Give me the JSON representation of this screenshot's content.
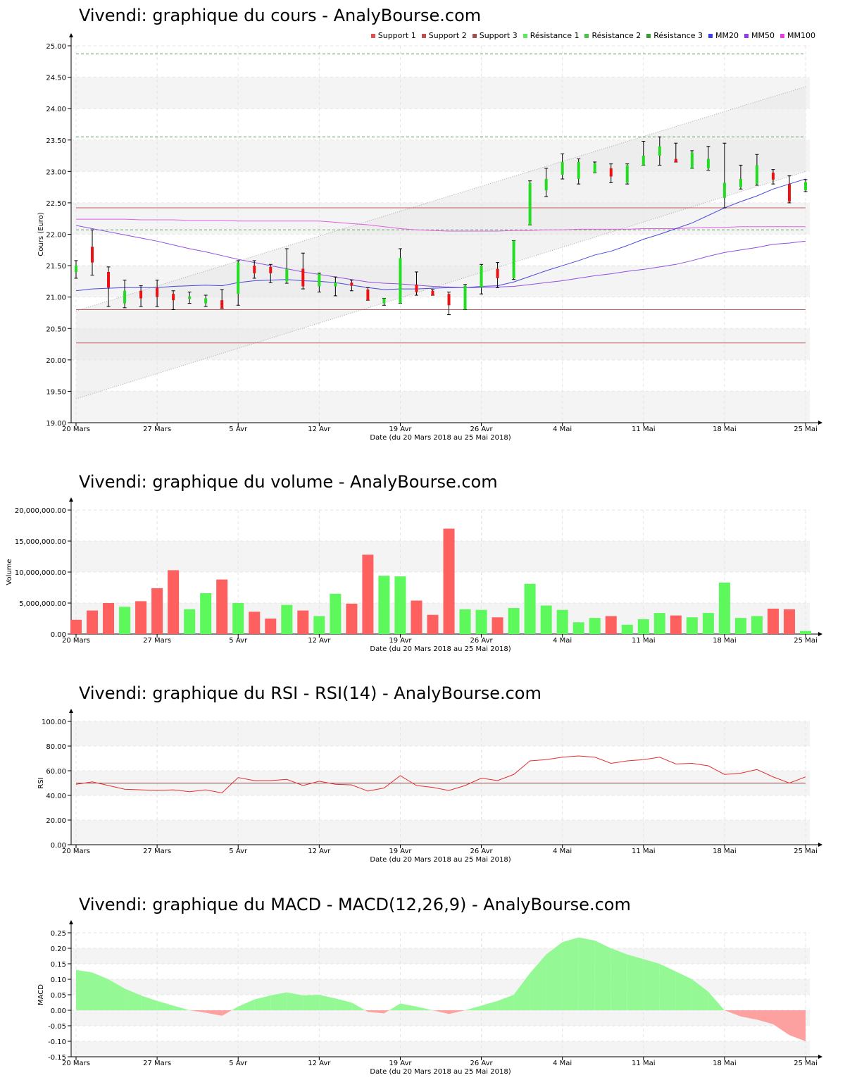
{
  "chart_data": [
    {
      "type": "candlestick",
      "title": "Vivendi: graphique du cours - AnalyBourse.com",
      "ylabel": "Cours (Euro)",
      "xlabel": "Date (du 20 Mars 2018 au 25 Mai 2018)",
      "ylim": [
        19.0,
        25.0
      ],
      "yticks": [
        "19.00",
        "19.50",
        "20.00",
        "20.50",
        "21.00",
        "21.50",
        "22.00",
        "22.50",
        "23.00",
        "23.50",
        "24.00",
        "24.50",
        "25.00"
      ],
      "xticks": [
        "20 Mars",
        "27 Mars",
        "5 Avr",
        "12 Avr",
        "19 Avr",
        "26 Avr",
        "4 Mai",
        "11 Mai",
        "18 Mai",
        "25 Mai"
      ],
      "xtick_index": [
        0,
        5,
        10,
        15,
        20,
        25,
        30,
        35,
        40,
        45
      ],
      "legend": [
        {
          "name": "Support 1",
          "color": "#e05050"
        },
        {
          "name": "Support 2",
          "color": "#c05050"
        },
        {
          "name": "Support 3",
          "color": "#a05050"
        },
        {
          "name": "Résistance 1",
          "color": "#5ee85e"
        },
        {
          "name": "Résistance 2",
          "color": "#4cc04c"
        },
        {
          "name": "Résistance 3",
          "color": "#3a9a3a"
        },
        {
          "name": "MM20",
          "color": "#4040e0"
        },
        {
          "name": "MM50",
          "color": "#9040e0"
        },
        {
          "name": "MM100",
          "color": "#e040e0"
        }
      ],
      "levels": {
        "support1": 20.8,
        "support2": 22.42,
        "support3": 20.27,
        "resistance1": 22.07,
        "resistance2": 23.55,
        "resistance3": 24.87
      },
      "trend_channel": {
        "upper": [
          20.78,
          24.35
        ],
        "lower": [
          19.38,
          23.0
        ]
      },
      "candles": [
        {
          "o": 21.4,
          "h": 21.58,
          "l": 21.3,
          "c": 21.5
        },
        {
          "o": 21.8,
          "h": 22.07,
          "l": 21.35,
          "c": 21.55
        },
        {
          "o": 21.4,
          "h": 21.48,
          "l": 20.85,
          "c": 21.15
        },
        {
          "o": 20.9,
          "h": 21.27,
          "l": 20.83,
          "c": 21.1
        },
        {
          "o": 21.1,
          "h": 21.18,
          "l": 20.85,
          "c": 20.98
        },
        {
          "o": 21.15,
          "h": 21.27,
          "l": 20.85,
          "c": 21.0
        },
        {
          "o": 21.05,
          "h": 21.1,
          "l": 20.8,
          "c": 20.95
        },
        {
          "o": 20.97,
          "h": 21.08,
          "l": 20.9,
          "c": 21.01
        },
        {
          "o": 20.9,
          "h": 21.03,
          "l": 20.85,
          "c": 20.98
        },
        {
          "o": 20.95,
          "h": 21.12,
          "l": 20.82,
          "c": 20.82
        },
        {
          "o": 21.05,
          "h": 21.58,
          "l": 20.87,
          "c": 21.55
        },
        {
          "o": 21.5,
          "h": 21.58,
          "l": 21.3,
          "c": 21.38
        },
        {
          "o": 21.48,
          "h": 21.52,
          "l": 21.23,
          "c": 21.38
        },
        {
          "o": 21.25,
          "h": 21.77,
          "l": 21.22,
          "c": 21.45
        },
        {
          "o": 21.45,
          "h": 21.7,
          "l": 21.13,
          "c": 21.17
        },
        {
          "o": 21.17,
          "h": 21.38,
          "l": 21.08,
          "c": 21.37
        },
        {
          "o": 21.17,
          "h": 21.32,
          "l": 21.02,
          "c": 21.23
        },
        {
          "o": 21.23,
          "h": 21.27,
          "l": 21.1,
          "c": 21.18
        },
        {
          "o": 21.12,
          "h": 21.15,
          "l": 20.95,
          "c": 20.95
        },
        {
          "o": 20.9,
          "h": 20.98,
          "l": 20.87,
          "c": 20.98
        },
        {
          "o": 20.9,
          "h": 21.77,
          "l": 20.9,
          "c": 21.62
        },
        {
          "o": 21.2,
          "h": 21.4,
          "l": 21.03,
          "c": 21.08
        },
        {
          "o": 21.1,
          "h": 21.12,
          "l": 21.03,
          "c": 21.03
        },
        {
          "o": 21.05,
          "h": 21.08,
          "l": 20.72,
          "c": 20.87
        },
        {
          "o": 20.8,
          "h": 21.2,
          "l": 20.8,
          "c": 21.18
        },
        {
          "o": 21.15,
          "h": 21.52,
          "l": 21.05,
          "c": 21.5
        },
        {
          "o": 21.45,
          "h": 21.55,
          "l": 21.15,
          "c": 21.3
        },
        {
          "o": 21.3,
          "h": 21.9,
          "l": 21.28,
          "c": 21.9
        },
        {
          "o": 22.15,
          "h": 22.85,
          "l": 22.15,
          "c": 22.82
        },
        {
          "o": 22.7,
          "h": 23.05,
          "l": 22.6,
          "c": 22.88
        },
        {
          "o": 22.95,
          "h": 23.28,
          "l": 22.88,
          "c": 23.15
        },
        {
          "o": 22.88,
          "h": 23.2,
          "l": 22.8,
          "c": 23.15
        },
        {
          "o": 22.98,
          "h": 23.15,
          "l": 22.98,
          "c": 23.13
        },
        {
          "o": 23.05,
          "h": 23.12,
          "l": 22.82,
          "c": 22.92
        },
        {
          "o": 22.82,
          "h": 23.12,
          "l": 22.8,
          "c": 23.1
        },
        {
          "o": 23.1,
          "h": 23.48,
          "l": 23.1,
          "c": 23.25
        },
        {
          "o": 23.25,
          "h": 23.55,
          "l": 23.1,
          "c": 23.4
        },
        {
          "o": 23.2,
          "h": 23.45,
          "l": 23.15,
          "c": 23.15
        },
        {
          "o": 23.05,
          "h": 23.33,
          "l": 23.05,
          "c": 23.3
        },
        {
          "o": 23.05,
          "h": 23.4,
          "l": 23.02,
          "c": 23.2
        },
        {
          "o": 22.58,
          "h": 23.45,
          "l": 22.42,
          "c": 22.82
        },
        {
          "o": 22.75,
          "h": 23.1,
          "l": 22.72,
          "c": 22.88
        },
        {
          "o": 22.8,
          "h": 23.27,
          "l": 22.78,
          "c": 23.1
        },
        {
          "o": 22.98,
          "h": 23.03,
          "l": 22.8,
          "c": 22.87
        },
        {
          "o": 22.8,
          "h": 22.93,
          "l": 22.5,
          "c": 22.52
        },
        {
          "o": 22.7,
          "h": 22.87,
          "l": 22.68,
          "c": 22.83
        }
      ],
      "ma20": [
        21.1,
        21.13,
        21.14,
        21.15,
        21.15,
        21.15,
        21.17,
        21.18,
        21.19,
        21.18,
        21.23,
        21.26,
        21.27,
        21.28,
        21.26,
        21.25,
        21.23,
        21.19,
        21.15,
        21.12,
        21.13,
        21.13,
        21.14,
        21.15,
        21.15,
        21.17,
        21.18,
        21.24,
        21.33,
        21.42,
        21.5,
        21.58,
        21.67,
        21.73,
        21.82,
        21.92,
        22.0,
        22.09,
        22.18,
        22.3,
        22.42,
        22.52,
        22.61,
        22.72,
        22.8,
        22.88
      ],
      "ma50": [
        22.14,
        22.09,
        22.04,
        21.99,
        21.94,
        21.89,
        21.83,
        21.77,
        21.72,
        21.66,
        21.6,
        21.55,
        21.5,
        21.45,
        21.4,
        21.36,
        21.32,
        21.28,
        21.24,
        21.22,
        21.21,
        21.19,
        21.17,
        21.16,
        21.15,
        21.15,
        21.16,
        21.17,
        21.2,
        21.23,
        21.26,
        21.3,
        21.34,
        21.37,
        21.41,
        21.44,
        21.48,
        21.52,
        21.58,
        21.65,
        21.71,
        21.75,
        21.79,
        21.84,
        21.86,
        21.89
      ],
      "ma100": [
        22.24,
        22.24,
        22.24,
        22.24,
        22.23,
        22.23,
        22.23,
        22.22,
        22.22,
        22.22,
        22.21,
        22.21,
        22.21,
        22.21,
        22.21,
        22.21,
        22.19,
        22.17,
        22.15,
        22.12,
        22.09,
        22.07,
        22.06,
        22.05,
        22.05,
        22.05,
        22.05,
        22.06,
        22.06,
        22.07,
        22.07,
        22.08,
        22.08,
        22.08,
        22.08,
        22.09,
        22.09,
        22.09,
        22.1,
        22.11,
        22.11,
        22.12,
        22.12,
        22.12,
        22.12,
        22.12
      ]
    },
    {
      "type": "bar",
      "title": "Vivendi: graphique du volume - AnalyBourse.com",
      "ylabel": "Volume",
      "xlabel": "Date (du 20 Mars 2018 au 25 Mai 2018)",
      "ylim": [
        0,
        20000000
      ],
      "yticks": [
        "0.00",
        "5,000,000.00",
        "10,000,000.00",
        "15,000,000.00",
        "20,000,000.00"
      ],
      "xticks": [
        "20 Mars",
        "27 Mars",
        "5 Avr",
        "12 Avr",
        "19 Avr",
        "26 Avr",
        "4 Mai",
        "11 Mai",
        "18 Mai",
        "25 Mai"
      ],
      "up_color": "#5cf85c",
      "down_color": "#fe5f5f",
      "values": [
        2300000,
        3800000,
        5000000,
        4400000,
        5300000,
        7400000,
        10300000,
        4000000,
        6600000,
        8800000,
        5000000,
        3600000,
        2500000,
        4700000,
        3800000,
        2900000,
        6500000,
        4900000,
        12800000,
        9400000,
        9300000,
        5400000,
        3100000,
        17000000,
        4000000,
        3900000,
        2700000,
        4200000,
        8100000,
        4600000,
        3900000,
        1900000,
        2600000,
        2900000,
        1500000,
        2400000,
        3400000,
        3000000,
        2700000,
        3400000,
        8300000,
        2600000,
        2900000,
        4100000,
        4000000,
        500000
      ],
      "up": [
        false,
        false,
        false,
        true,
        false,
        false,
        false,
        true,
        true,
        false,
        true,
        false,
        false,
        true,
        false,
        true,
        true,
        false,
        false,
        true,
        true,
        false,
        false,
        false,
        true,
        true,
        false,
        true,
        true,
        true,
        true,
        true,
        true,
        false,
        true,
        true,
        true,
        false,
        true,
        true,
        true,
        true,
        true,
        false,
        false,
        true
      ]
    },
    {
      "type": "line",
      "title": "Vivendi: graphique du RSI - RSI(14) - AnalyBourse.com",
      "ylabel": "RSI",
      "xlabel": "Date (du 20 Mars 2018 au 25 Mai 2018)",
      "ylim": [
        0,
        100
      ],
      "yticks": [
        "0.00",
        "20.00",
        "40.00",
        "60.00",
        "80.00",
        "100.00"
      ],
      "xticks": [
        "20 Mars",
        "27 Mars",
        "5 Avr",
        "12 Avr",
        "19 Avr",
        "26 Avr",
        "4 Mai",
        "11 Mai",
        "18 Mai",
        "25 Mai"
      ],
      "reference": 50,
      "color": "#e03030",
      "values": [
        49,
        51,
        48,
        45,
        44.5,
        44,
        44.5,
        43,
        44.5,
        42,
        54.5,
        52,
        52,
        53,
        48,
        51.5,
        49,
        48.5,
        43.5,
        46,
        56,
        48,
        46.5,
        44,
        48,
        54,
        52,
        57,
        68,
        69,
        71,
        72,
        71,
        66,
        68,
        69,
        71,
        65.5,
        66,
        64,
        57,
        58,
        61,
        55,
        50,
        55
      ]
    },
    {
      "type": "area",
      "title": "Vivendi: graphique du MACD - MACD(12,26,9) - AnalyBourse.com",
      "ylabel": "MACD",
      "xlabel": "Date (du 20 Mars 2018 au 25 Mai 2018)",
      "ylim": [
        -0.15,
        0.25
      ],
      "yticks": [
        "-0.15",
        "-0.10",
        "-0.05",
        "0.00",
        "0.05",
        "0.10",
        "0.15",
        "0.20",
        "0.25"
      ],
      "xticks": [
        "20 Mars",
        "27 Mars",
        "5 Avr",
        "12 Avr",
        "19 Avr",
        "26 Avr",
        "4 Mai",
        "11 Mai",
        "18 Mai",
        "25 Mai"
      ],
      "pos_color": "#94f894",
      "neg_color": "#fda0a0",
      "values": [
        0.13,
        0.122,
        0.1,
        0.07,
        0.048,
        0.03,
        0.015,
        0.0,
        -0.008,
        -0.018,
        0.012,
        0.035,
        0.048,
        0.058,
        0.048,
        0.05,
        0.038,
        0.025,
        -0.005,
        -0.01,
        0.022,
        0.012,
        0.0,
        -0.012,
        0.0,
        0.015,
        0.03,
        0.05,
        0.12,
        0.18,
        0.22,
        0.235,
        0.225,
        0.2,
        0.18,
        0.165,
        0.15,
        0.125,
        0.1,
        0.06,
        0.0,
        -0.02,
        -0.03,
        -0.045,
        -0.08,
        -0.1
      ]
    }
  ]
}
